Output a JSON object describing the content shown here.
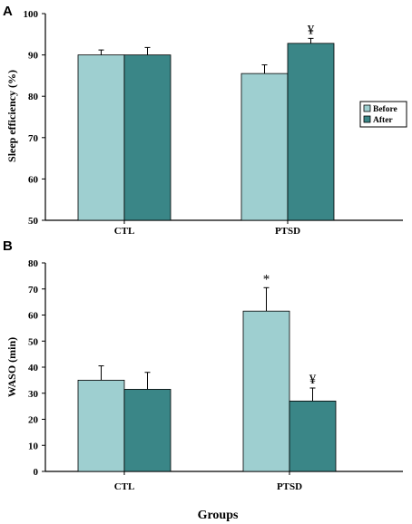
{
  "colors": {
    "before": "#9ecfd0",
    "after": "#3a8687",
    "axis": "#000000"
  },
  "chart_data": [
    {
      "type": "bar",
      "panel": "A",
      "ylabel": "Sleep efficiency (%)",
      "xlabel": "",
      "categories": [
        "CTL",
        "PTSD"
      ],
      "ylim": [
        50,
        100
      ],
      "yticks": [
        50,
        60,
        70,
        80,
        90,
        100
      ],
      "grid": false,
      "legend": "right",
      "series": [
        {
          "name": "Before",
          "values": [
            90,
            85.5
          ],
          "errors": [
            1.2,
            2.1
          ]
        },
        {
          "name": "After",
          "values": [
            90,
            92.8
          ],
          "errors": [
            1.8,
            1.2
          ]
        }
      ],
      "annotations": [
        {
          "category": "PTSD",
          "series": "After",
          "text": "¥"
        }
      ]
    },
    {
      "type": "bar",
      "panel": "B",
      "ylabel": "WASO (min)",
      "xlabel": "Groups",
      "categories": [
        "CTL",
        "PTSD"
      ],
      "ylim": [
        0,
        80
      ],
      "yticks": [
        0,
        10,
        20,
        30,
        40,
        50,
        60,
        70,
        80
      ],
      "grid": false,
      "series": [
        {
          "name": "Before",
          "values": [
            35,
            61.5
          ],
          "errors": [
            5.5,
            9
          ]
        },
        {
          "name": "After",
          "values": [
            31.5,
            27
          ],
          "errors": [
            6.5,
            5
          ]
        }
      ],
      "annotations": [
        {
          "category": "PTSD",
          "series": "Before",
          "text": "*"
        },
        {
          "category": "PTSD",
          "series": "After",
          "text": "¥"
        }
      ]
    }
  ]
}
